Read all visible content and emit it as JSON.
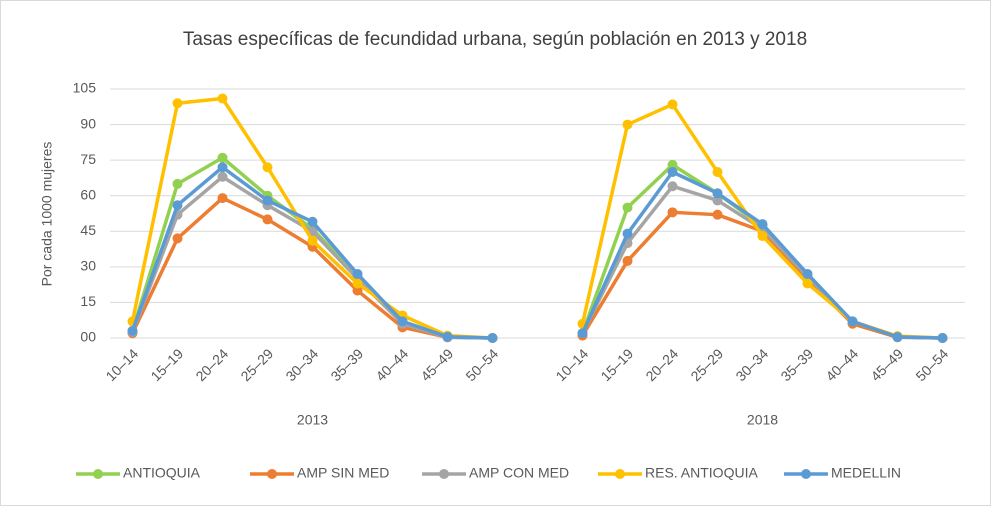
{
  "chart_data": {
    "type": "line",
    "title": "Tasas específicas de fecundidad urbana, según población en 2013 y 2018",
    "y_label": "Por cada 1000 mujeres",
    "groups": [
      "2013",
      "2018"
    ],
    "categories": [
      "10–14",
      "15–19",
      "20–24",
      "25–29",
      "30–34",
      "35–39",
      "40–44",
      "45–49",
      "50–54",
      "10–14",
      "15–19",
      "20–24",
      "25–29",
      "30–34",
      "35–39",
      "40–44",
      "45–49",
      "50–54"
    ],
    "ylim": [
      0,
      105
    ],
    "yticks": [
      {
        "value": 0,
        "label": "00"
      },
      15,
      30,
      45,
      60,
      75,
      90,
      105
    ],
    "grid": true,
    "legend": "bottom",
    "series": [
      {
        "name": "ANTIOQUIA",
        "color": "#92d050",
        "values": [
          3,
          65,
          76,
          60,
          46,
          26,
          7,
          0.5,
          0,
          2,
          55,
          73,
          61,
          47,
          26,
          7,
          0.5,
          0
        ]
      },
      {
        "name": "AMP SIN MED",
        "color": "#ed7d31",
        "values": [
          2,
          42,
          59,
          50,
          38.5,
          20,
          4.5,
          0.3,
          0,
          1,
          32.5,
          53,
          52,
          45,
          25,
          6,
          0.3,
          0
        ]
      },
      {
        "name": "AMP CON MED",
        "color": "#a5a5a5",
        "values": [
          2.5,
          52,
          68,
          56,
          45,
          25,
          6,
          0.3,
          0,
          2,
          40,
          64,
          58,
          46,
          26,
          7,
          0.4,
          0
        ]
      },
      {
        "name": "RES. ANTIOQUIA",
        "color": "#ffc000",
        "values": [
          7,
          99,
          101,
          72,
          41,
          23,
          9.5,
          1,
          0,
          6,
          90,
          98.5,
          70,
          43,
          23,
          7,
          0.8,
          0
        ]
      },
      {
        "name": "MEDELLIN",
        "color": "#5b9bd5",
        "values": [
          3,
          56,
          72,
          58,
          49,
          27,
          7,
          0.5,
          0,
          2,
          44,
          70,
          61,
          48,
          27,
          7,
          0.4,
          0
        ]
      }
    ]
  }
}
